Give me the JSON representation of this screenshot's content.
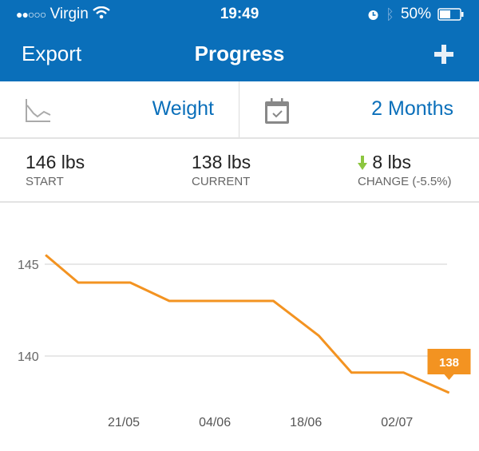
{
  "status_bar": {
    "signal": "●●○○○",
    "carrier": "Virgin",
    "time": "19:49",
    "battery": "50%",
    "icons": [
      "wifi-icon",
      "alarm-icon",
      "bluetooth-icon",
      "battery-icon"
    ]
  },
  "nav": {
    "left": "Export",
    "title": "Progress",
    "right_icon": "plus-icon"
  },
  "selectors": {
    "metric": "Weight",
    "metric_icon": "line-chart-icon",
    "range": "2 Months",
    "range_icon": "calendar-icon"
  },
  "stats": {
    "start": {
      "value": "146 lbs",
      "label": "START"
    },
    "current": {
      "value": "138 lbs",
      "label": "CURRENT"
    },
    "change": {
      "value": "8 lbs",
      "label": "CHANGE (-5.5%)",
      "direction": "down",
      "arrow_color": "#8cc63f"
    }
  },
  "colors": {
    "brand": "#0a6fba",
    "line": "#f39321"
  },
  "chart_data": {
    "type": "line",
    "x": [
      "09/05",
      "14/05",
      "22/05",
      "28/05",
      "13/06",
      "20/06",
      "25/06",
      "03/07",
      "10/07"
    ],
    "values": [
      145.5,
      144,
      144,
      143,
      143,
      141.1,
      139.1,
      139.1,
      138
    ],
    "x_ticks": [
      "21/05",
      "04/06",
      "18/06",
      "02/07"
    ],
    "y_ticks": [
      "145",
      "140"
    ],
    "grid": true,
    "callout": "138"
  }
}
